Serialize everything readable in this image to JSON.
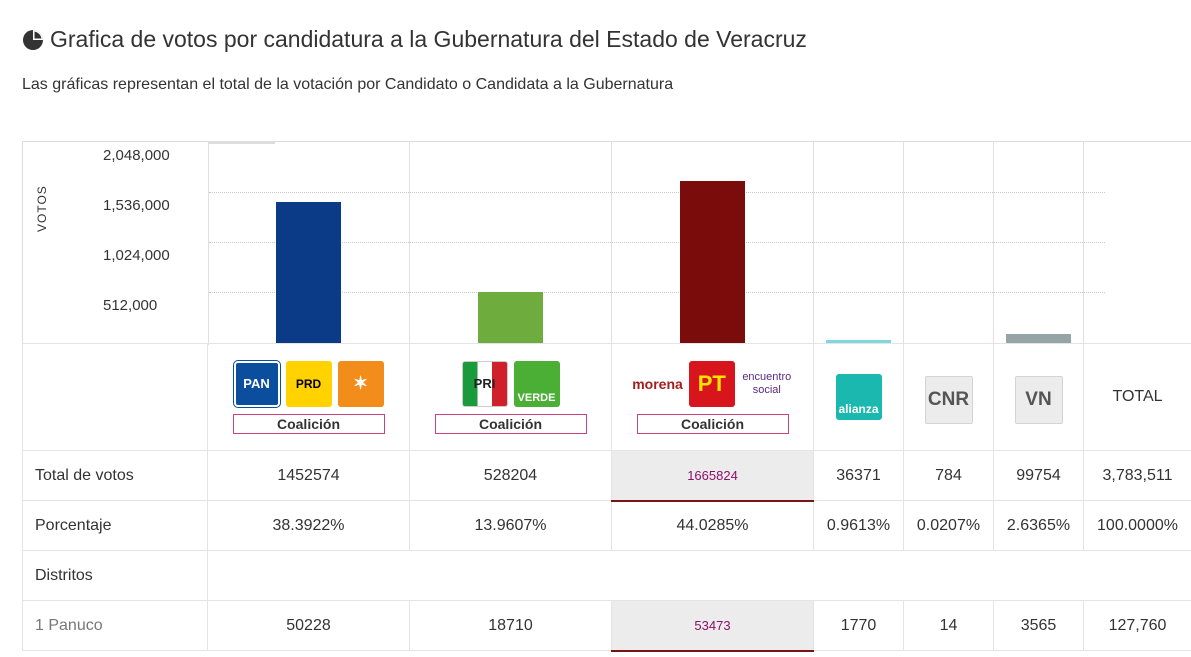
{
  "header": {
    "title": "Grafica de votos por candidatura a la Gubernatura del Estado de Veracruz",
    "subtitle": "Las gráficas representan el total de la votación por Candidato o Candidata a la Gubernatura"
  },
  "colors": {
    "coalition_pan": "#0b3a86",
    "coalition_pri": "#6fac3e",
    "coalition_morena": "#7a0c0c",
    "nueva_alianza": "#7fd6dd",
    "vn": "#95a5a6"
  },
  "chart_data": {
    "type": "bar",
    "ylabel": "VOTOS",
    "yticks": [
      "2,048,000",
      "1,536,000",
      "1,024,000",
      "512,000"
    ],
    "ylim": [
      0,
      2048000
    ],
    "grid": true,
    "categories": [
      "PAN-PRD-MC",
      "PRI-VERDE",
      "MORENA-PT-PES",
      "NUEVA ALIANZA",
      "CNR",
      "VN"
    ],
    "values": [
      1452574,
      528204,
      1665824,
      36371,
      784,
      99754
    ]
  },
  "logos": {
    "pan": "PAN",
    "prd": "PRD",
    "pri": "PRI",
    "verde": "VERDE",
    "morena": "morena",
    "pt": "PT",
    "encuentro": "encuentro social",
    "alianza": "alianza",
    "cnr": "CNR",
    "vn": "VN"
  },
  "table": {
    "coalition_label": "Coalición",
    "total_header": "TOTAL",
    "rows": {
      "total_votos": {
        "label": "Total de votos",
        "values": [
          "1452574",
          "528204",
          "1665824",
          "36371",
          "784",
          "99754",
          "3,783,511"
        ]
      },
      "porcentaje": {
        "label": "Porcentaje",
        "values": [
          "38.3922%",
          "13.9607%",
          "44.0285%",
          "0.9613%",
          "0.0207%",
          "2.6365%",
          "100.0000%"
        ]
      },
      "distritos": {
        "label": "Distritos"
      },
      "panuco": {
        "label": "1 Panuco",
        "values": [
          "50228",
          "18710",
          "53473",
          "1770",
          "14",
          "3565",
          "127,760"
        ]
      }
    }
  }
}
